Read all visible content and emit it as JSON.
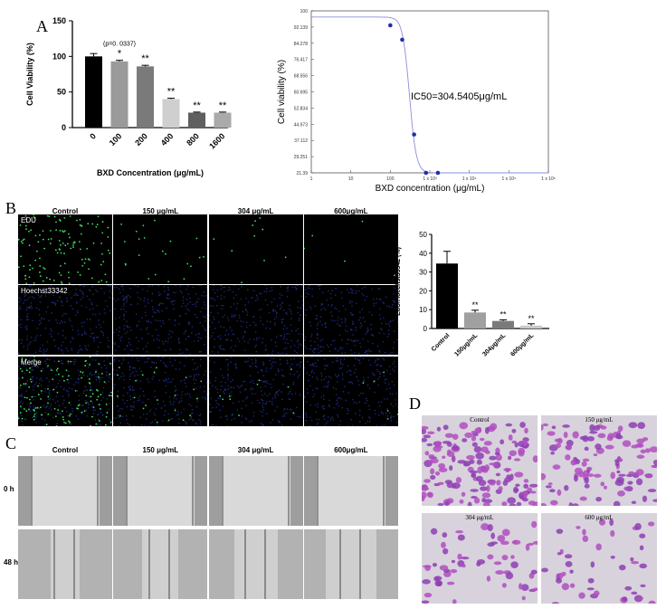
{
  "panels": {
    "a": "A",
    "b": "B",
    "c": "C",
    "d": "D"
  },
  "chart_data": [
    {
      "type": "bar",
      "title": "",
      "xlabel": "BXD Concentration (μg/mL)",
      "ylabel": "Cell Viability (%)",
      "categories": [
        "0",
        "100",
        "200",
        "400",
        "800",
        "1600"
      ],
      "values": [
        100,
        93,
        86,
        40,
        21,
        21
      ],
      "errors": [
        4,
        1.5,
        1.5,
        1.2,
        0.8,
        0.8
      ],
      "significance": [
        "",
        "*",
        "**",
        "**",
        "**",
        "**"
      ],
      "annotation": "(p=0. 0337)",
      "ylim": [
        0,
        150
      ],
      "yticks": [
        "0",
        "50",
        "100",
        "150"
      ],
      "bar_colors": [
        "#000000",
        "#9a9a9a",
        "#7a7a7a",
        "#cfcfcf",
        "#5f5f5f",
        "#aaaaaa"
      ]
    },
    {
      "type": "scatter",
      "title": "",
      "xlabel": "BXD concentration (μg/mL)",
      "ylabel": "Cell viability (%)",
      "x_scale": "log",
      "xticks": [
        "1",
        "10",
        "100",
        "1 x 10³",
        "1 x 10⁴",
        "1 x 10⁵",
        "1 x 10⁶"
      ],
      "yticks": [
        "21.39",
        "29.251",
        "37.112",
        "44.973",
        "52.834",
        "60.695",
        "68.556",
        "76.417",
        "84.278",
        "92.139",
        "100"
      ],
      "ylim": [
        21.39,
        100
      ],
      "x": [
        100,
        200,
        400,
        800,
        1600
      ],
      "y": [
        93,
        86,
        40,
        21.39,
        21.39
      ],
      "fit": {
        "top": 97,
        "bottom": 21.39,
        "ic50": 304.5405,
        "hill": 5
      },
      "annotation": "IC50=304.5405μg/mL",
      "point_color": "#1f2fa8",
      "line_color": "#8a8fd8"
    },
    {
      "type": "bar",
      "title": "",
      "xlabel": "",
      "ylabel": "EdU/Hoechst33342 (%)",
      "categories": [
        "Control",
        "150μg/mL",
        "304μg/mL",
        "600μg/mL"
      ],
      "values": [
        34.5,
        8.5,
        4,
        1.5
      ],
      "errors": [
        6.5,
        1.2,
        0.6,
        1
      ],
      "significance": [
        "",
        "**",
        "**",
        "**"
      ],
      "ylim": [
        0,
        50
      ],
      "yticks": [
        "0",
        "10",
        "20",
        "30",
        "40",
        "50"
      ],
      "bar_colors": [
        "#000000",
        "#a0a0a0",
        "#7a7a7a",
        "#c8c8c8"
      ]
    }
  ],
  "edu": {
    "columns": [
      "Control",
      "150 μg/mL",
      "304 μg/mL",
      "600μg/mL"
    ],
    "rows": [
      "EDU",
      "Hoechst33342",
      "Merge"
    ]
  },
  "wound": {
    "columns": [
      "Control",
      "150 μg/mL",
      "304 μg/mL",
      "600μg/mL"
    ],
    "rows": [
      "0 h",
      "48 h"
    ]
  },
  "transwell": {
    "labels": [
      "Control",
      "150 μg/mL",
      "304 μg/mL",
      "600 μg/mL"
    ]
  }
}
